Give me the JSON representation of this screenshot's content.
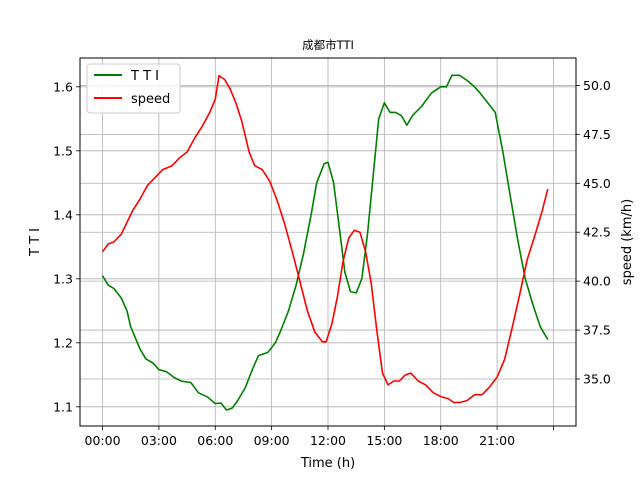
{
  "chart_data": {
    "type": "line",
    "title": "成都市TTI",
    "xlabel": "Time (h)",
    "ylabel_left": "T T I",
    "ylabel_right": "speed (km/h)",
    "grid": true,
    "legend_position": "upper-left",
    "xlim": [
      -1.2,
      25.2
    ],
    "ylim_left": [
      1.07,
      1.645
    ],
    "ylim_right": [
      32.6,
      51.4
    ],
    "x_ticks": [
      0,
      3,
      6,
      9,
      12,
      15,
      18,
      21,
      24
    ],
    "x_tick_labels": [
      "00:00",
      "03:00",
      "06:00",
      "09:00",
      "12:00",
      "15:00",
      "18:00",
      "21:00",
      ""
    ],
    "y_ticks_left": [
      1.1,
      1.2,
      1.3,
      1.4,
      1.5,
      1.6
    ],
    "y_tick_labels_left": [
      "1.1",
      "1.2",
      "1.3",
      "1.4",
      "1.5",
      "1.6"
    ],
    "y_ticks_right": [
      35.0,
      37.5,
      40.0,
      42.5,
      45.0,
      47.5,
      50.0
    ],
    "y_tick_labels_right": [
      "35.0",
      "37.5",
      "40.0",
      "42.5",
      "45.0",
      "47.5",
      "50.0"
    ],
    "series": [
      {
        "name": "T T I",
        "axis": "left",
        "color": "#008000",
        "points": [
          [
            0,
            1.305
          ],
          [
            0.3,
            1.29
          ],
          [
            0.6,
            1.285
          ],
          [
            1.0,
            1.27
          ],
          [
            1.3,
            1.25
          ],
          [
            1.5,
            1.225
          ],
          [
            2.0,
            1.19
          ],
          [
            2.3,
            1.175
          ],
          [
            2.7,
            1.168
          ],
          [
            3.0,
            1.158
          ],
          [
            3.4,
            1.155
          ],
          [
            3.8,
            1.146
          ],
          [
            4.2,
            1.14
          ],
          [
            4.7,
            1.138
          ],
          [
            5.1,
            1.122
          ],
          [
            5.6,
            1.115
          ],
          [
            6.0,
            1.105
          ],
          [
            6.3,
            1.106
          ],
          [
            6.6,
            1.095
          ],
          [
            6.9,
            1.098
          ],
          [
            7.2,
            1.11
          ],
          [
            7.6,
            1.13
          ],
          [
            8.0,
            1.16
          ],
          [
            8.3,
            1.18
          ],
          [
            8.8,
            1.185
          ],
          [
            9.2,
            1.2
          ],
          [
            9.5,
            1.22
          ],
          [
            9.9,
            1.25
          ],
          [
            10.3,
            1.29
          ],
          [
            10.7,
            1.34
          ],
          [
            11.1,
            1.4
          ],
          [
            11.4,
            1.45
          ],
          [
            11.8,
            1.48
          ],
          [
            12.0,
            1.482
          ],
          [
            12.3,
            1.45
          ],
          [
            12.6,
            1.38
          ],
          [
            12.9,
            1.31
          ],
          [
            13.2,
            1.28
          ],
          [
            13.5,
            1.278
          ],
          [
            13.8,
            1.3
          ],
          [
            14.1,
            1.37
          ],
          [
            14.4,
            1.46
          ],
          [
            14.7,
            1.55
          ],
          [
            15.0,
            1.575
          ],
          [
            15.3,
            1.56
          ],
          [
            15.6,
            1.56
          ],
          [
            15.9,
            1.555
          ],
          [
            16.2,
            1.54
          ],
          [
            16.5,
            1.555
          ],
          [
            17.0,
            1.57
          ],
          [
            17.5,
            1.59
          ],
          [
            18.0,
            1.6
          ],
          [
            18.3,
            1.6
          ],
          [
            18.6,
            1.618
          ],
          [
            19.0,
            1.618
          ],
          [
            19.4,
            1.61
          ],
          [
            19.8,
            1.6
          ],
          [
            20.1,
            1.59
          ],
          [
            20.5,
            1.575
          ],
          [
            20.9,
            1.56
          ],
          [
            21.3,
            1.5
          ],
          [
            21.7,
            1.43
          ],
          [
            22.1,
            1.36
          ],
          [
            22.5,
            1.3
          ],
          [
            22.9,
            1.26
          ],
          [
            23.3,
            1.225
          ],
          [
            23.7,
            1.205
          ]
        ]
      },
      {
        "name": "speed",
        "axis": "right",
        "color": "#ff0000",
        "points": [
          [
            0,
            41.5
          ],
          [
            0.3,
            41.9
          ],
          [
            0.6,
            42.0
          ],
          [
            1.0,
            42.4
          ],
          [
            1.3,
            43.0
          ],
          [
            1.6,
            43.6
          ],
          [
            2.0,
            44.2
          ],
          [
            2.4,
            44.9
          ],
          [
            2.8,
            45.3
          ],
          [
            3.2,
            45.7
          ],
          [
            3.7,
            45.9
          ],
          [
            4.1,
            46.3
          ],
          [
            4.5,
            46.6
          ],
          [
            4.9,
            47.3
          ],
          [
            5.3,
            47.9
          ],
          [
            5.7,
            48.6
          ],
          [
            6.0,
            49.3
          ],
          [
            6.2,
            50.5
          ],
          [
            6.5,
            50.3
          ],
          [
            6.8,
            49.8
          ],
          [
            7.1,
            49.1
          ],
          [
            7.4,
            48.2
          ],
          [
            7.8,
            46.6
          ],
          [
            8.1,
            45.9
          ],
          [
            8.5,
            45.7
          ],
          [
            8.9,
            45.1
          ],
          [
            9.3,
            44.1
          ],
          [
            9.7,
            42.9
          ],
          [
            10.1,
            41.5
          ],
          [
            10.5,
            40.0
          ],
          [
            10.9,
            38.5
          ],
          [
            11.3,
            37.4
          ],
          [
            11.7,
            36.9
          ],
          [
            11.9,
            36.9
          ],
          [
            12.2,
            37.8
          ],
          [
            12.5,
            39.2
          ],
          [
            12.8,
            41.0
          ],
          [
            13.1,
            42.2
          ],
          [
            13.4,
            42.6
          ],
          [
            13.7,
            42.5
          ],
          [
            14.0,
            41.5
          ],
          [
            14.3,
            39.9
          ],
          [
            14.6,
            37.5
          ],
          [
            14.9,
            35.3
          ],
          [
            15.2,
            34.7
          ],
          [
            15.5,
            34.9
          ],
          [
            15.8,
            34.9
          ],
          [
            16.1,
            35.2
          ],
          [
            16.4,
            35.3
          ],
          [
            16.8,
            34.9
          ],
          [
            17.2,
            34.7
          ],
          [
            17.6,
            34.3
          ],
          [
            18.0,
            34.1
          ],
          [
            18.4,
            34.0
          ],
          [
            18.7,
            33.8
          ],
          [
            19.0,
            33.8
          ],
          [
            19.4,
            33.9
          ],
          [
            19.8,
            34.2
          ],
          [
            20.2,
            34.2
          ],
          [
            20.6,
            34.6
          ],
          [
            21.0,
            35.1
          ],
          [
            21.4,
            36.0
          ],
          [
            21.8,
            37.6
          ],
          [
            22.2,
            39.3
          ],
          [
            22.6,
            41.1
          ],
          [
            23.0,
            42.3
          ],
          [
            23.4,
            43.6
          ],
          [
            23.7,
            44.7
          ]
        ]
      }
    ]
  }
}
